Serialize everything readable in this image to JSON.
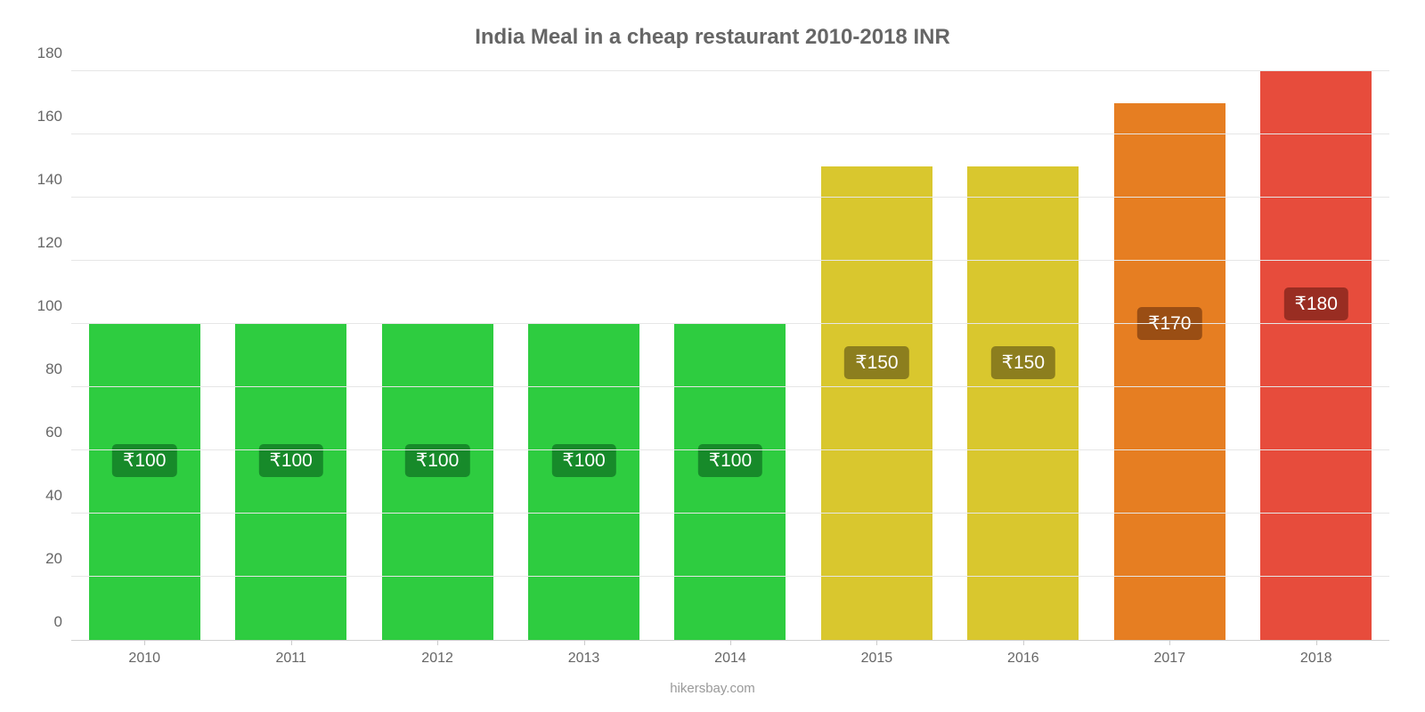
{
  "chart": {
    "type": "bar",
    "title": "India Meal in a cheap restaurant 2010-2018 INR",
    "title_color": "#666666",
    "title_fontsize": 24,
    "background_color": "#ffffff",
    "grid_color": "#e6e6e6",
    "axis_color": "#d0d0d0",
    "tick_label_color": "#666666",
    "tick_label_fontsize": 17,
    "ylim": [
      0,
      180
    ],
    "ytick_step": 20,
    "yticks": [
      0,
      20,
      40,
      60,
      80,
      100,
      120,
      140,
      160,
      180
    ],
    "bar_width_ratio": 0.76,
    "categories": [
      "2010",
      "2011",
      "2012",
      "2013",
      "2014",
      "2015",
      "2016",
      "2017",
      "2018"
    ],
    "values": [
      100,
      100,
      100,
      100,
      100,
      150,
      150,
      170,
      180
    ],
    "value_labels": [
      "₹100",
      "₹100",
      "₹100",
      "₹100",
      "₹100",
      "₹150",
      "₹150",
      "₹170",
      "₹180"
    ],
    "bar_colors": [
      "#2ecc40",
      "#2ecc40",
      "#2ecc40",
      "#2ecc40",
      "#2ecc40",
      "#d9c72e",
      "#d9c72e",
      "#e67e22",
      "#e74c3c"
    ],
    "badge_colors": [
      "#178a2a",
      "#178a2a",
      "#178a2a",
      "#178a2a",
      "#178a2a",
      "#8c7e1e",
      "#8c7e1e",
      "#9a4e14",
      "#992d22"
    ],
    "badge_text_color": "#ffffff",
    "badge_fontsize": 21,
    "source_text": "hikersbay.com",
    "source_color": "#999999"
  }
}
